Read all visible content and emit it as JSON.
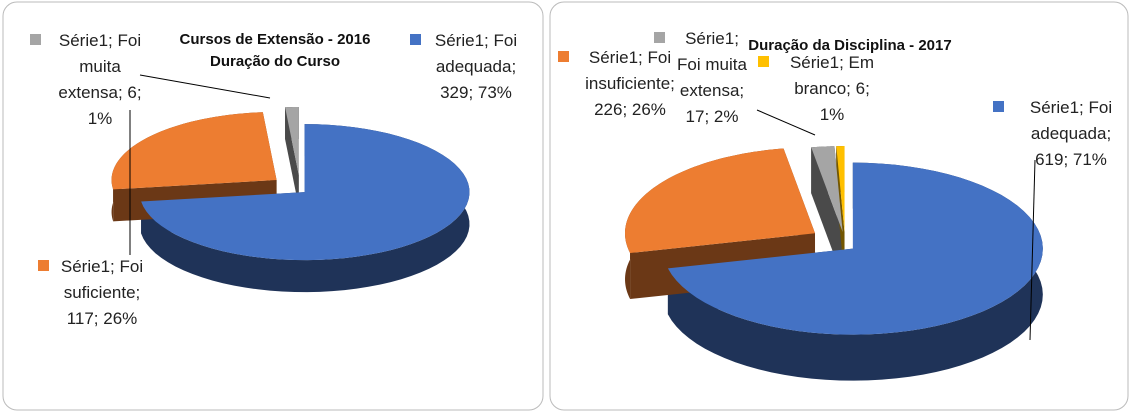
{
  "chart_data": [
    {
      "type": "pie3d",
      "title": "Cursos de Extensão - 2016",
      "subtitle": "Duração do Curso",
      "categories": [
        "Foi adequada",
        "Foi suficiente",
        "Foi muita extensa"
      ],
      "values": [
        329,
        117,
        6
      ],
      "value_labels": [
        "Série1; Foi adequada; 329; 73%",
        "Série1; Foi suficiente; 117; 26%",
        "Série1; Foi muita extensa; 6; 1%"
      ],
      "colors": [
        "#4472c4",
        "#ed7d31",
        "#a5a5a5"
      ]
    },
    {
      "type": "pie3d",
      "title": "Duração da Disciplina - 2017",
      "categories": [
        "Foi adequada",
        "Foi insuficiente",
        "Foi muita extensa",
        "Em branco"
      ],
      "values": [
        619,
        226,
        17,
        6
      ],
      "value_labels": [
        "Série1; Foi adequada; 619; 71%",
        "Série1; Foi insuficiente; 226; 26%",
        "Série1; Foi muita extensa; 17; 2%",
        "Série1; Em branco; 6; 1%"
      ],
      "colors": [
        "#4472c4",
        "#ed7d31",
        "#a5a5a5",
        "#ffc000"
      ]
    }
  ]
}
